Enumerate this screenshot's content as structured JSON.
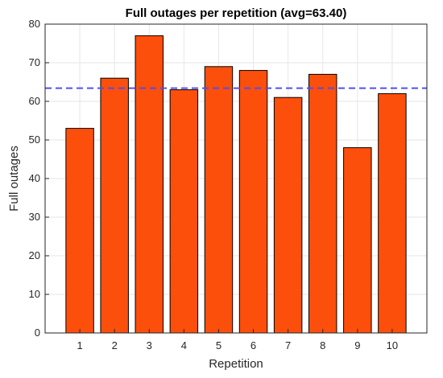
{
  "chart_data": {
    "type": "bar",
    "title": "Full outages per repetition (avg=63.40)",
    "xlabel": "Repetition",
    "ylabel": "Full outages",
    "categories": [
      "1",
      "2",
      "3",
      "4",
      "5",
      "6",
      "7",
      "8",
      "9",
      "10"
    ],
    "values": [
      53,
      66,
      77,
      63,
      69,
      68,
      61,
      67,
      48,
      62
    ],
    "ylim": [
      0,
      80
    ],
    "yticks": [
      "0",
      "10",
      "20",
      "30",
      "40",
      "50",
      "60",
      "70",
      "80"
    ],
    "grid": true,
    "reference_line": {
      "value": 63.4,
      "style": "dashed",
      "color": "#5050ee"
    },
    "colors": {
      "bar_fill": "#fc4f0c",
      "bar_edge": "#000000",
      "grid": "#e6e6e6",
      "axis": "#262626"
    }
  }
}
